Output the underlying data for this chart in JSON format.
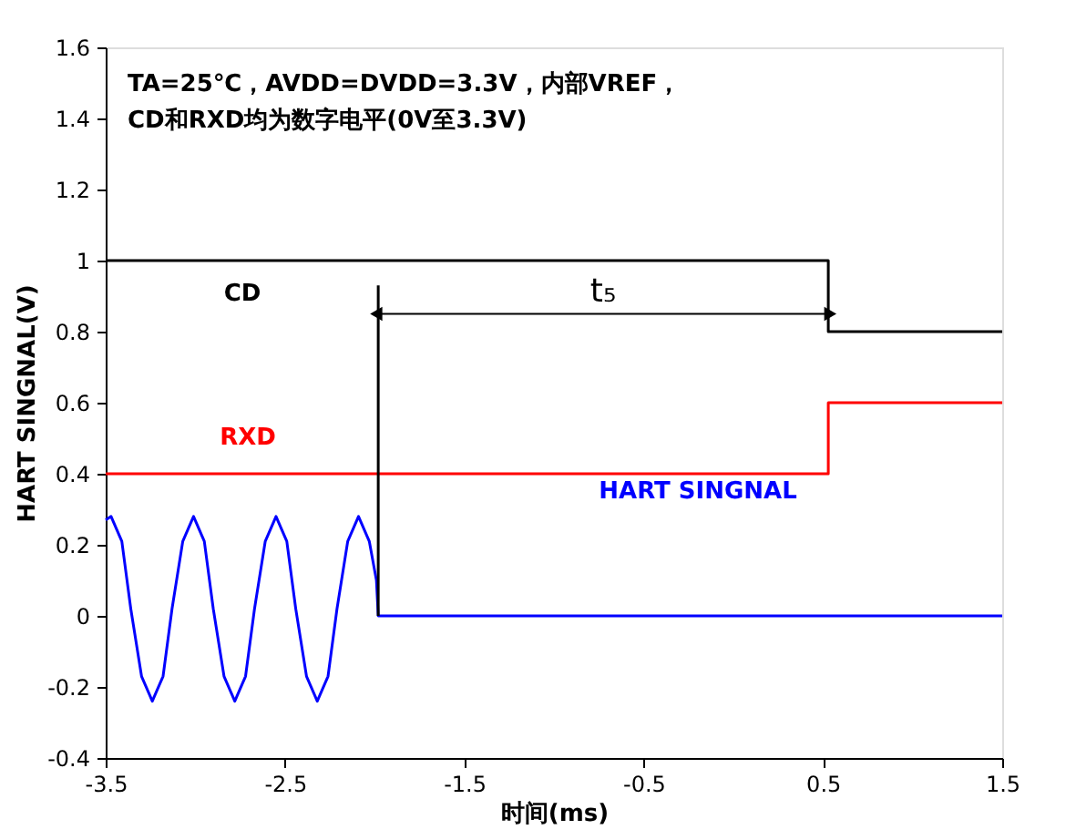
{
  "chart_data": {
    "type": "line",
    "xlabel": "时间(ms)",
    "ylabel": "HART SINGNAL(V)",
    "xlim": [
      -3.5,
      1.5
    ],
    "xticks": [
      -3.5,
      -2.5,
      -1.5,
      -0.5,
      0.5,
      1.5
    ],
    "ylim": [
      -0.4,
      1.6
    ],
    "yticks": [
      -0.4,
      -0.2,
      0,
      0.2,
      0.4,
      0.6,
      0.8,
      1,
      1.2,
      1.4,
      1.6
    ],
    "grid": false,
    "legend": false,
    "marker": "none",
    "line_style": "solid",
    "annotations": [
      "TA=25℃，AVDD=DVDD=3.3V，内部VREF，",
      "CD和RXD均为数字电平(0V至3.3V)",
      "t₅"
    ],
    "series": [
      {
        "name": "CD",
        "color": "#000000",
        "x": [
          -3.5,
          0.53,
          0.53,
          1.5
        ],
        "values": [
          1,
          1,
          0.8,
          0.8
        ]
      },
      {
        "name": "RXD",
        "color": "#ff0000",
        "x": [
          -3.5,
          0.53,
          0.53,
          1.5
        ],
        "values": [
          0.4,
          0.4,
          0.6,
          0.6
        ]
      },
      {
        "name": "HART SINGNAL",
        "color": "#0000ff",
        "x": [
          -3.5,
          -3.47,
          -3.41,
          -3.36,
          -3.3,
          -3.24,
          -3.18,
          -3.13,
          -3.07,
          -3.01,
          -2.95,
          -2.9,
          -2.84,
          -2.78,
          -2.72,
          -2.67,
          -2.61,
          -2.55,
          -2.49,
          -2.44,
          -2.38,
          -2.32,
          -2.26,
          -2.21,
          -2.15,
          -2.09,
          -2.03,
          -1.99,
          -1.98,
          1.5
        ],
        "values": [
          0.27,
          0.28,
          0.21,
          0.02,
          -0.17,
          -0.24,
          -0.17,
          0.02,
          0.21,
          0.28,
          0.21,
          0.02,
          -0.17,
          -0.24,
          -0.17,
          0.02,
          0.21,
          0.28,
          0.21,
          0.02,
          -0.17,
          -0.24,
          -0.17,
          0.02,
          0.21,
          0.28,
          0.21,
          0.1,
          0,
          0
        ]
      },
      {
        "type": "line",
        "color": "#000000",
        "x": [
          -1.98,
          -1.98
        ],
        "values": [
          0,
          0.93
        ]
      }
    ]
  }
}
